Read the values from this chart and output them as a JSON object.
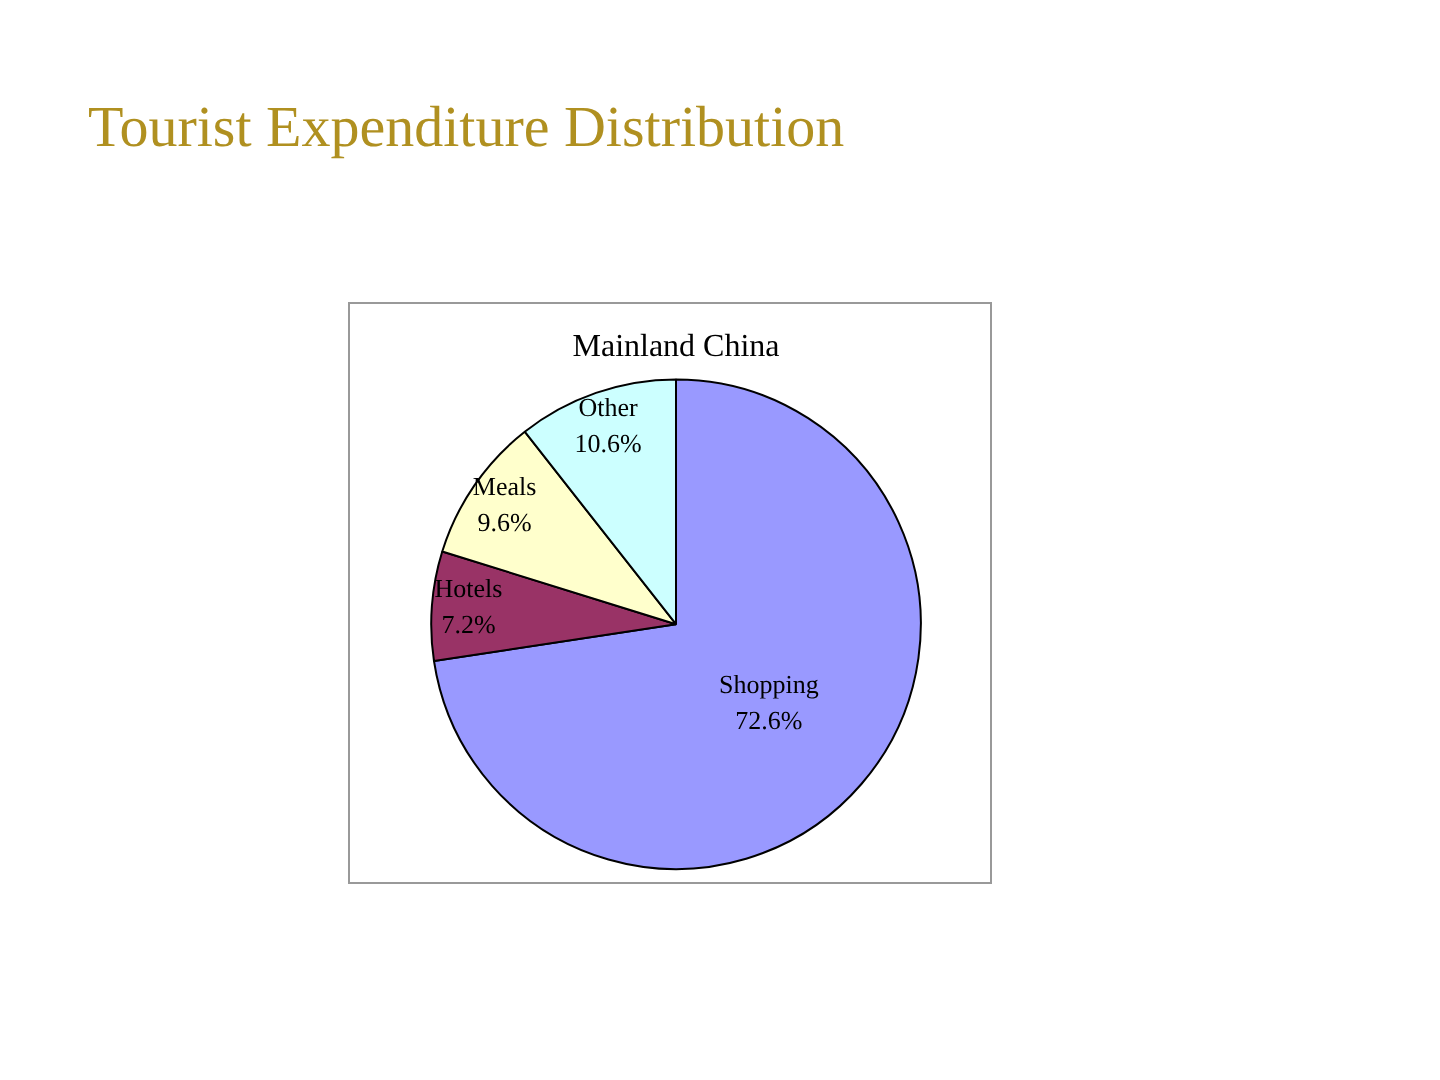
{
  "chart_data": {
    "type": "pie",
    "title": "Tourist Expenditure Distribution",
    "subtitle": "Mainland China",
    "categories": [
      "Shopping",
      "Hotels",
      "Meals",
      "Other"
    ],
    "values": [
      72.6,
      7.2,
      9.6,
      10.6
    ],
    "colors": [
      "#9999ff",
      "#993366",
      "#ffffcc",
      "#ccffff"
    ],
    "value_labels": [
      "72.6%",
      "7.2%",
      "9.6%",
      "10.6%"
    ],
    "legend": false
  }
}
